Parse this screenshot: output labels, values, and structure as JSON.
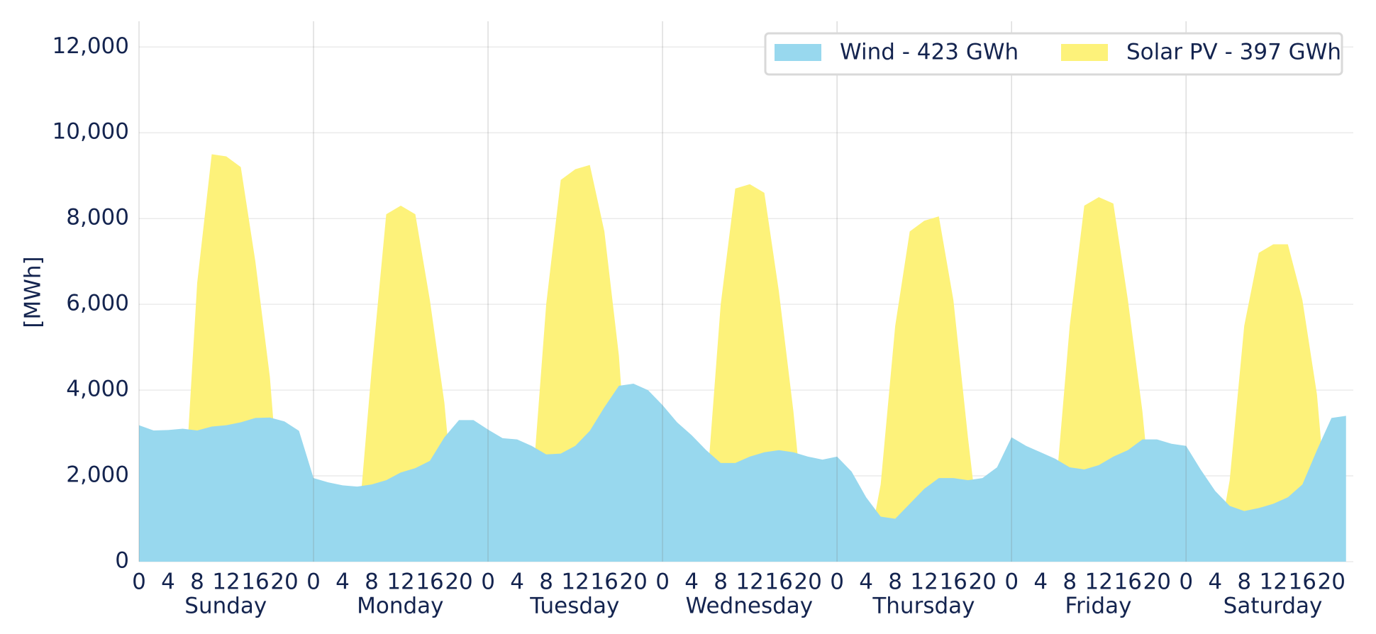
{
  "chart_data": {
    "type": "area",
    "y_label": "[MWh]",
    "x": [
      0,
      2,
      4,
      6,
      8,
      10,
      12,
      14,
      16,
      18,
      20,
      22,
      24,
      26,
      28,
      30,
      32,
      34,
      36,
      38,
      40,
      42,
      44,
      46,
      48,
      50,
      52,
      54,
      56,
      58,
      60,
      62,
      64,
      66,
      68,
      70,
      72,
      74,
      76,
      78,
      80,
      82,
      84,
      86,
      88,
      90,
      92,
      94,
      96,
      98,
      100,
      102,
      104,
      106,
      108,
      110,
      112,
      114,
      116,
      118,
      120,
      122,
      124,
      126,
      128,
      130,
      132,
      134,
      136,
      138,
      140,
      142,
      144,
      146,
      148,
      150,
      152,
      154,
      156,
      158,
      160,
      162,
      164,
      166
    ],
    "xlim": [
      0,
      167
    ],
    "xticks": [
      {
        "value": 0,
        "label": "0"
      },
      {
        "value": 4,
        "label": "4"
      },
      {
        "value": 8,
        "label": "8"
      },
      {
        "value": 12,
        "label": "12"
      },
      {
        "value": 16,
        "label": "16"
      },
      {
        "value": 20,
        "label": "20"
      },
      {
        "value": 24,
        "label": "0"
      },
      {
        "value": 28,
        "label": "4"
      },
      {
        "value": 32,
        "label": "8"
      },
      {
        "value": 36,
        "label": "12"
      },
      {
        "value": 40,
        "label": "16"
      },
      {
        "value": 44,
        "label": "20"
      },
      {
        "value": 48,
        "label": "0"
      },
      {
        "value": 52,
        "label": "4"
      },
      {
        "value": 56,
        "label": "8"
      },
      {
        "value": 60,
        "label": "12"
      },
      {
        "value": 64,
        "label": "16"
      },
      {
        "value": 68,
        "label": "20"
      },
      {
        "value": 72,
        "label": "0"
      },
      {
        "value": 76,
        "label": "4"
      },
      {
        "value": 80,
        "label": "8"
      },
      {
        "value": 84,
        "label": "12"
      },
      {
        "value": 88,
        "label": "16"
      },
      {
        "value": 92,
        "label": "20"
      },
      {
        "value": 96,
        "label": "0"
      },
      {
        "value": 100,
        "label": "4"
      },
      {
        "value": 104,
        "label": "8"
      },
      {
        "value": 108,
        "label": "12"
      },
      {
        "value": 112,
        "label": "16"
      },
      {
        "value": 116,
        "label": "20"
      },
      {
        "value": 120,
        "label": "0"
      },
      {
        "value": 124,
        "label": "4"
      },
      {
        "value": 128,
        "label": "8"
      },
      {
        "value": 132,
        "label": "12"
      },
      {
        "value": 136,
        "label": "16"
      },
      {
        "value": 140,
        "label": "20"
      },
      {
        "value": 144,
        "label": "0"
      },
      {
        "value": 148,
        "label": "4"
      },
      {
        "value": 152,
        "label": "8"
      },
      {
        "value": 156,
        "label": "12"
      },
      {
        "value": 160,
        "label": "16"
      },
      {
        "value": 164,
        "label": "20"
      }
    ],
    "days": [
      "Sunday",
      "Monday",
      "Tuesday",
      "Wednesday",
      "Thursday",
      "Friday",
      "Saturday"
    ],
    "ylim": [
      0,
      12600
    ],
    "yticks": [
      0,
      {
        "value": 2000,
        "label": "2,000"
      },
      {
        "value": 4000,
        "label": "4,000"
      },
      {
        "value": 6000,
        "label": "6,000"
      },
      {
        "value": 8000,
        "label": "8,000"
      },
      {
        "value": 10000,
        "label": "10,000"
      },
      {
        "value": 12000,
        "label": "12,000"
      }
    ],
    "grid": true,
    "legend": "top-right",
    "series": [
      {
        "name": "Wind - 423 GWh",
        "color": "#98d8ee",
        "values": [
          3180,
          3060,
          3070,
          3100,
          3060,
          3150,
          3180,
          3250,
          3350,
          3360,
          3270,
          3050,
          1950,
          1850,
          1780,
          1750,
          1800,
          1900,
          2080,
          2180,
          2350,
          2900,
          3300,
          3300,
          3080,
          2880,
          2850,
          2700,
          2500,
          2520,
          2700,
          3050,
          3600,
          4100,
          4150,
          4000,
          3650,
          3250,
          2950,
          2600,
          2300,
          2300,
          2450,
          2550,
          2600,
          2550,
          2450,
          2380,
          2450,
          2100,
          1500,
          1050,
          1000,
          1350,
          1700,
          1950,
          1950,
          1900,
          1950,
          2200,
          2900,
          2700,
          2550,
          2400,
          2200,
          2150,
          2250,
          2450,
          2600,
          2850,
          2850,
          2750,
          2700,
          2150,
          1650,
          1300,
          1180,
          1250,
          1350,
          1500,
          1800,
          2600,
          3350,
          3400
        ]
      },
      {
        "name": "Solar PV - 397 GWh",
        "color": "#fdf27a",
        "values": [
          0,
          0,
          0,
          800,
          6500,
          9500,
          9450,
          9200,
          7000,
          4300,
          0,
          0,
          0,
          0,
          0,
          500,
          4500,
          8100,
          8300,
          8100,
          6100,
          3700,
          0,
          0,
          0,
          0,
          0,
          1500,
          6000,
          8900,
          9150,
          9250,
          7700,
          4800,
          0,
          0,
          0,
          0,
          0,
          1500,
          6000,
          8700,
          8800,
          8600,
          6300,
          3500,
          0,
          0,
          0,
          0,
          0,
          1800,
          5500,
          7700,
          7950,
          8050,
          6100,
          2900,
          0,
          0,
          0,
          0,
          0,
          1500,
          5500,
          8300,
          8500,
          8350,
          6100,
          3500,
          0,
          0,
          0,
          0,
          0,
          1900,
          5500,
          7200,
          7400,
          7400,
          6100,
          3900,
          0,
          0
        ]
      }
    ]
  }
}
